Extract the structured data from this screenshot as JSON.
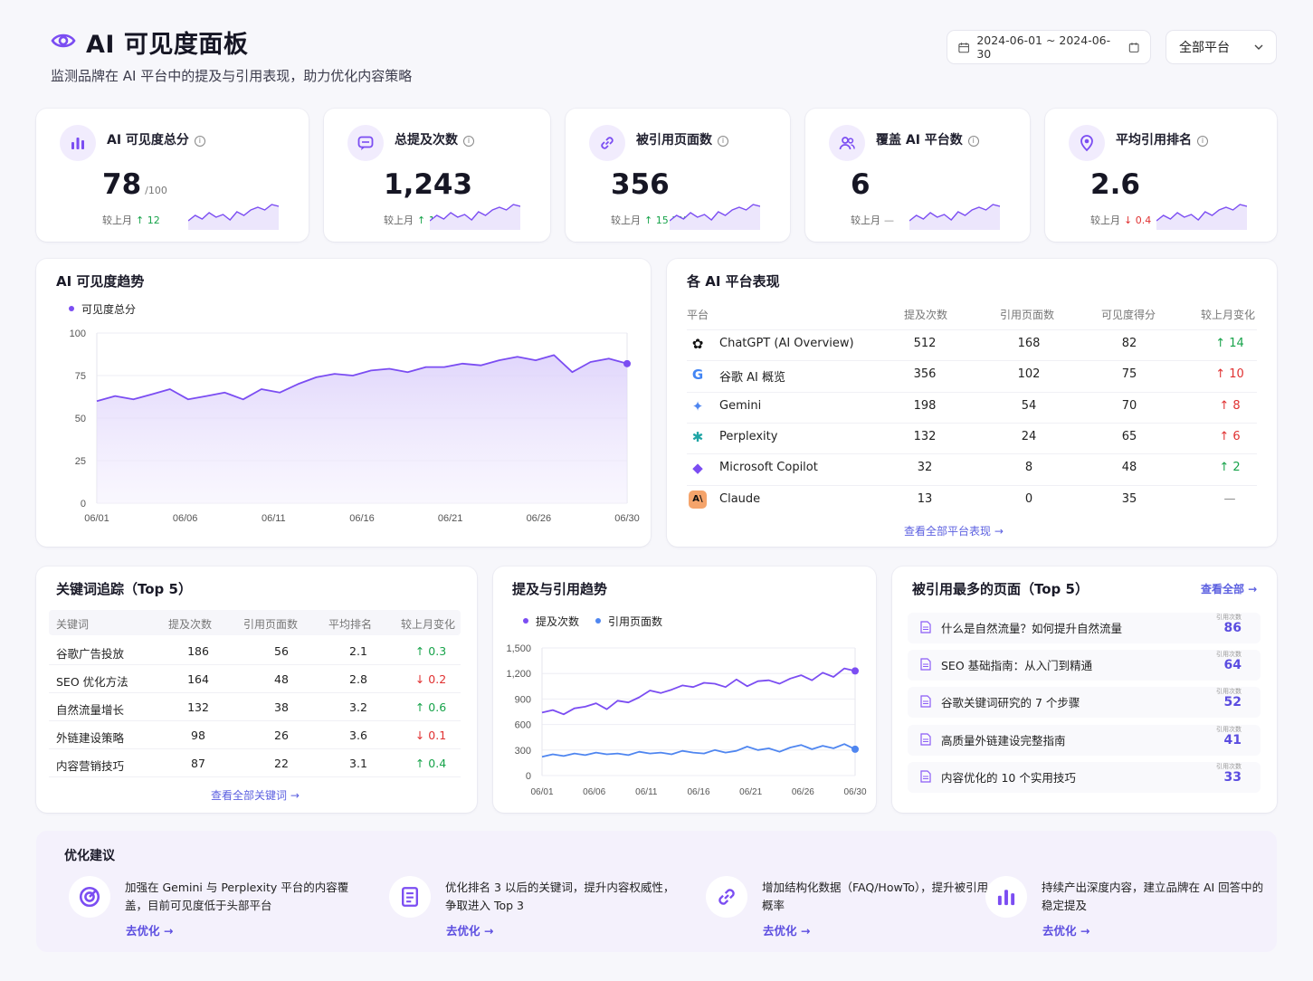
{
  "header": {
    "title": "AI 可见度面板",
    "subtitle": "监测品牌在 AI 平台中的提及与引用表现，助力优化内容策略",
    "date_range": "2024-06-01 ~ 2024-06-30",
    "platform_select": "全部平台"
  },
  "kpis": [
    {
      "label": "AI 可见度总分",
      "value": "78",
      "unit": "/100",
      "cmp_label": "较上月",
      "delta": "↑ 12",
      "trend": "up",
      "icon": "bar-chart-icon"
    },
    {
      "label": "总提及次数",
      "value": "1,243",
      "unit": "",
      "cmp_label": "较上月",
      "delta": "↑ 18.6%",
      "trend": "up",
      "icon": "chat-bubble-icon"
    },
    {
      "label": "被引用页面数",
      "value": "356",
      "unit": "",
      "cmp_label": "较上月",
      "delta": "↑ 15.3%",
      "trend": "up",
      "icon": "link-icon"
    },
    {
      "label": "覆盖 AI 平台数",
      "value": "6",
      "unit": "",
      "cmp_label": "较上月",
      "delta": "—",
      "trend": "flat",
      "icon": "users-icon"
    },
    {
      "label": "平均引用排名",
      "value": "2.6",
      "unit": "",
      "cmp_label": "较上月",
      "delta": "↓ 0.4",
      "trend": "down",
      "icon": "location-pin-icon"
    }
  ],
  "visibility_trend": {
    "title": "AI 可见度趋势",
    "legend": "可见度总分",
    "yticks": [
      "100",
      "75",
      "50",
      "25",
      "0"
    ],
    "xticks": [
      "06/01",
      "06/06",
      "06/11",
      "06/16",
      "06/21",
      "06/26",
      "06/30"
    ]
  },
  "platforms": {
    "title": "各 AI 平台表现",
    "headers": [
      "平台",
      "提及次数",
      "引用页面数",
      "可见度得分",
      "较上月变化"
    ],
    "rows": [
      {
        "name": "ChatGPT (AI Overview)",
        "mentions": "512",
        "pages": "168",
        "score": "82",
        "change": "↑ 14",
        "trend": "up",
        "icon": "chatgpt-icon"
      },
      {
        "name": "谷歌 AI 概览",
        "mentions": "356",
        "pages": "102",
        "score": "75",
        "change": "↑ 10",
        "trend": "up-red",
        "icon": "google-icon"
      },
      {
        "name": "Gemini",
        "mentions": "198",
        "pages": "54",
        "score": "70",
        "change": "↑ 8",
        "trend": "up-red",
        "icon": "gemini-icon"
      },
      {
        "name": "Perplexity",
        "mentions": "132",
        "pages": "24",
        "score": "65",
        "change": "↑ 6",
        "trend": "up-red",
        "icon": "perplexity-icon"
      },
      {
        "name": "Microsoft Copilot",
        "mentions": "32",
        "pages": "8",
        "score": "48",
        "change": "↑ 2",
        "trend": "up",
        "icon": "copilot-icon"
      },
      {
        "name": "Claude",
        "mentions": "13",
        "pages": "0",
        "score": "35",
        "change": "—",
        "trend": "flat",
        "icon": "claude-icon"
      }
    ],
    "view_all": "查看全部平台表现 →"
  },
  "keywords": {
    "title": "关键词追踪（Top 5）",
    "headers": [
      "关键词",
      "提及次数",
      "引用页面数",
      "平均排名",
      "较上月变化"
    ],
    "rows": [
      {
        "kw": "谷歌广告投放",
        "mentions": "186",
        "pages": "56",
        "rank": "2.1",
        "change": "↑ 0.3",
        "trend": "up"
      },
      {
        "kw": "SEO 优化方法",
        "mentions": "164",
        "pages": "48",
        "rank": "2.8",
        "change": "↓ 0.2",
        "trend": "down"
      },
      {
        "kw": "自然流量增长",
        "mentions": "132",
        "pages": "38",
        "rank": "3.2",
        "change": "↑ 0.6",
        "trend": "up"
      },
      {
        "kw": "外链建设策略",
        "mentions": "98",
        "pages": "26",
        "rank": "3.6",
        "change": "↓ 0.1",
        "trend": "down"
      },
      {
        "kw": "内容营销技巧",
        "mentions": "87",
        "pages": "22",
        "rank": "3.1",
        "change": "↑ 0.4",
        "trend": "up"
      }
    ],
    "view_all": "查看全部关键词 →"
  },
  "mention_trend": {
    "title": "提及与引用趋势",
    "legend": [
      "提及次数",
      "引用页面数"
    ],
    "yticks": [
      "1,500",
      "1,200",
      "900",
      "600",
      "300",
      "0"
    ],
    "xticks": [
      "06/01",
      "06/06",
      "06/11",
      "06/16",
      "06/21",
      "06/26",
      "06/30"
    ]
  },
  "top_pages": {
    "title": "被引用最多的页面（Top 5）",
    "view_all": "查看全部 →",
    "count_label": "引用次数",
    "rows": [
      {
        "title": "什么是自然流量？如何提升自然流量",
        "count": "86"
      },
      {
        "title": "SEO 基础指南：从入门到精通",
        "count": "64"
      },
      {
        "title": "谷歌关键词研究的 7 个步骤",
        "count": "52"
      },
      {
        "title": "高质量外链建设完整指南",
        "count": "41"
      },
      {
        "title": "内容优化的 10 个实用技巧",
        "count": "33"
      }
    ]
  },
  "suggestions": {
    "title": "优化建议",
    "items": [
      {
        "text": "加强在 Gemini 与 Perplexity 平台的内容覆盖，目前可见度低于头部平台",
        "link": "去优化 →",
        "icon": "target-icon"
      },
      {
        "text": "优化排名 3 以后的关键词，提升内容权威性，争取进入 Top 3",
        "link": "去优化 →",
        "icon": "document-icon"
      },
      {
        "text": "增加结构化数据（FAQ/HowTo），提升被引用概率",
        "link": "去优化 →",
        "icon": "link-icon"
      },
      {
        "text": "持续产出深度内容，建立品牌在 AI 回答中的稳定提及",
        "link": "去优化 →",
        "icon": "bar-chart-icon"
      }
    ]
  },
  "colors": {
    "accent": "#7b4df2",
    "blue": "#4f86f0",
    "up": "#17a34a",
    "down": "#e03131",
    "link": "#5b5fe0"
  },
  "chart_data": [
    {
      "type": "area",
      "title": "AI 可见度趋势",
      "x": [
        "06/01",
        "06/02",
        "06/03",
        "06/04",
        "06/05",
        "06/06",
        "06/07",
        "06/08",
        "06/09",
        "06/10",
        "06/11",
        "06/12",
        "06/13",
        "06/14",
        "06/15",
        "06/16",
        "06/17",
        "06/18",
        "06/19",
        "06/20",
        "06/21",
        "06/22",
        "06/23",
        "06/24",
        "06/25",
        "06/26",
        "06/27",
        "06/28",
        "06/29",
        "06/30"
      ],
      "series": [
        {
          "name": "可见度总分",
          "values": [
            60,
            63,
            61,
            64,
            67,
            61,
            63,
            65,
            61,
            67,
            65,
            70,
            74,
            76,
            75,
            78,
            79,
            77,
            80,
            80,
            82,
            81,
            84,
            86,
            84,
            87,
            77,
            83,
            85,
            82
          ]
        }
      ],
      "ylim": [
        0,
        100
      ]
    },
    {
      "type": "line",
      "title": "提及与引用趋势",
      "x": [
        "06/01",
        "06/02",
        "06/03",
        "06/04",
        "06/05",
        "06/06",
        "06/07",
        "06/08",
        "06/09",
        "06/10",
        "06/11",
        "06/12",
        "06/13",
        "06/14",
        "06/15",
        "06/16",
        "06/17",
        "06/18",
        "06/19",
        "06/20",
        "06/21",
        "06/22",
        "06/23",
        "06/24",
        "06/25",
        "06/26",
        "06/27",
        "06/28",
        "06/29",
        "06/30"
      ],
      "series": [
        {
          "name": "提及次数",
          "values": [
            740,
            770,
            720,
            790,
            810,
            850,
            780,
            880,
            860,
            920,
            1000,
            970,
            1010,
            1060,
            1040,
            1090,
            1080,
            1040,
            1130,
            1050,
            1110,
            1120,
            1080,
            1140,
            1180,
            1120,
            1210,
            1160,
            1260,
            1230
          ]
        },
        {
          "name": "引用页面数",
          "values": [
            220,
            250,
            230,
            260,
            240,
            270,
            250,
            260,
            240,
            280,
            260,
            270,
            250,
            290,
            270,
            260,
            300,
            270,
            290,
            340,
            300,
            320,
            280,
            330,
            360,
            310,
            350,
            320,
            370,
            310
          ]
        }
      ],
      "ylim": [
        0,
        1500
      ]
    }
  ]
}
